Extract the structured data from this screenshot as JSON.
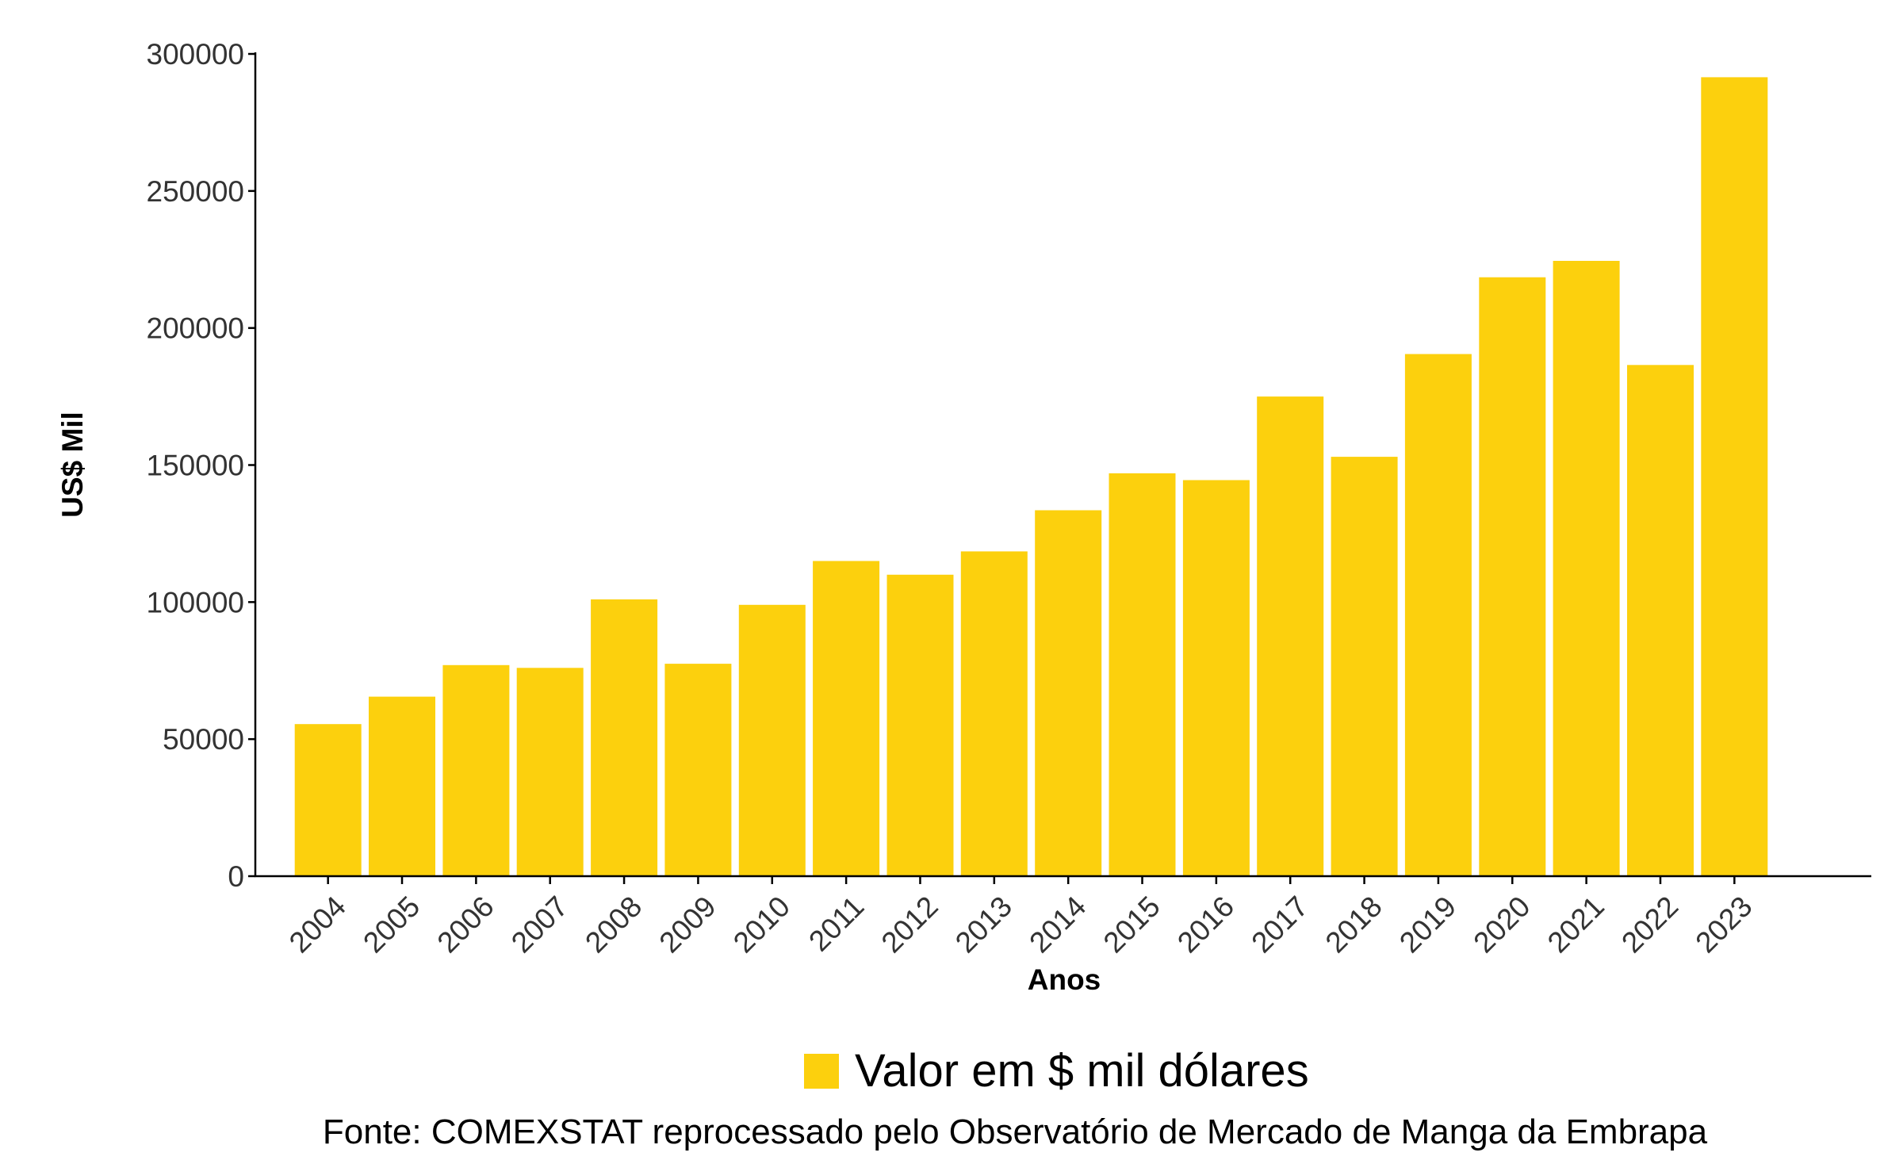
{
  "chart_data": {
    "type": "bar",
    "title": "",
    "xlabel": "Anos",
    "ylabel": "US$ Mil",
    "ylim": [
      0,
      300000
    ],
    "yticks": [
      0,
      50000,
      100000,
      150000,
      200000,
      250000,
      300000
    ],
    "categories": [
      "2004",
      "2005",
      "2006",
      "2007",
      "2008",
      "2009",
      "2010",
      "2011",
      "2012",
      "2013",
      "2014",
      "2015",
      "2016",
      "2017",
      "2018",
      "2019",
      "2020",
      "2021",
      "2022",
      "2023"
    ],
    "series": [
      {
        "name": "Valor em $ mil dólares",
        "color": "#FCD00D",
        "values": [
          55500,
          65500,
          77000,
          76000,
          101000,
          77500,
          99000,
          115000,
          110000,
          118500,
          133500,
          147000,
          144500,
          175000,
          153000,
          190500,
          218500,
          224500,
          186500,
          291500
        ]
      }
    ],
    "grid": false,
    "legend_position": "bottom"
  },
  "footer": {
    "source": "Fonte: COMEXSTAT reprocessado pelo Observatório de Mercado de Manga da Embrapa"
  }
}
